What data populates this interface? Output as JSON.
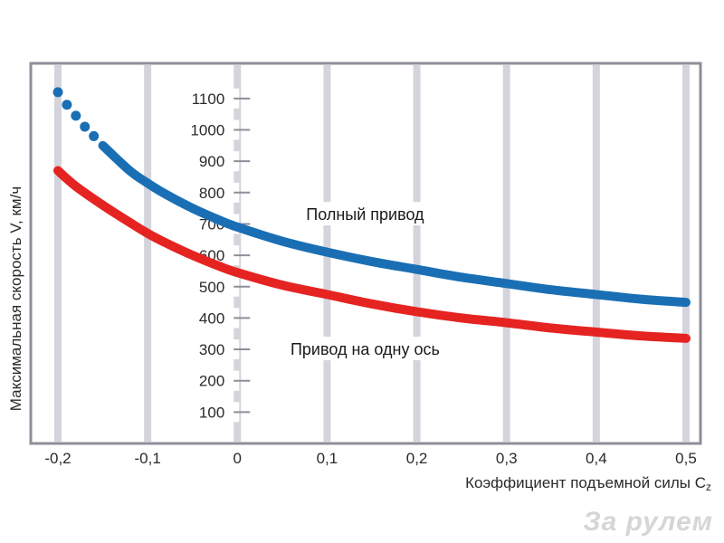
{
  "chart_data": {
    "type": "line",
    "title": "",
    "ylabel": "Максимальная скорость V, км/ч",
    "xlabel": "Коэффициент подъемной силы C",
    "xlabel_sub": "z",
    "xlim": [
      -0.2,
      0.5
    ],
    "ylim": [
      0,
      1150
    ],
    "x_ticks": [
      "-0,2",
      "-0,1",
      "0",
      "0,1",
      "0,2",
      "0,3",
      "0,4",
      "0,5"
    ],
    "y_ticks": [
      "100",
      "200",
      "300",
      "400",
      "500",
      "600",
      "700",
      "800",
      "900",
      "1000",
      "1100"
    ],
    "grid": "vertical",
    "series": [
      {
        "name": "Полный привод",
        "color": "#1a6fb4",
        "dotted_start": [
          {
            "x": -0.2,
            "y": 1120
          },
          {
            "x": -0.19,
            "y": 1080
          },
          {
            "x": -0.18,
            "y": 1045
          },
          {
            "x": -0.17,
            "y": 1010
          },
          {
            "x": -0.16,
            "y": 980
          }
        ],
        "x": [
          -0.15,
          -0.12,
          -0.1,
          -0.08,
          -0.05,
          -0.02,
          0,
          0.05,
          0.1,
          0.15,
          0.2,
          0.25,
          0.3,
          0.35,
          0.4,
          0.45,
          0.5
        ],
        "y": [
          950,
          870,
          830,
          795,
          750,
          712,
          690,
          645,
          610,
          580,
          555,
          530,
          510,
          490,
          475,
          460,
          450
        ]
      },
      {
        "name": "Привод на одну ось",
        "color": "#e52421",
        "x": [
          -0.2,
          -0.18,
          -0.15,
          -0.12,
          -0.1,
          -0.08,
          -0.05,
          -0.02,
          0,
          0.05,
          0.1,
          0.15,
          0.2,
          0.25,
          0.3,
          0.35,
          0.4,
          0.45,
          0.5
        ],
        "y": [
          870,
          820,
          760,
          705,
          670,
          640,
          600,
          565,
          545,
          505,
          475,
          445,
          420,
          400,
          385,
          368,
          355,
          343,
          335
        ]
      }
    ],
    "annotations": [
      {
        "text": "Полный привод",
        "x": 0.1,
        "y": 730
      },
      {
        "text": "Привод на одну ось",
        "x": 0.1,
        "y": 300
      }
    ]
  },
  "watermark": "За рулем",
  "colors": {
    "frame": "#8e8e99",
    "grid": "#d4d4dc",
    "tick_text": "#2a2a2a"
  }
}
